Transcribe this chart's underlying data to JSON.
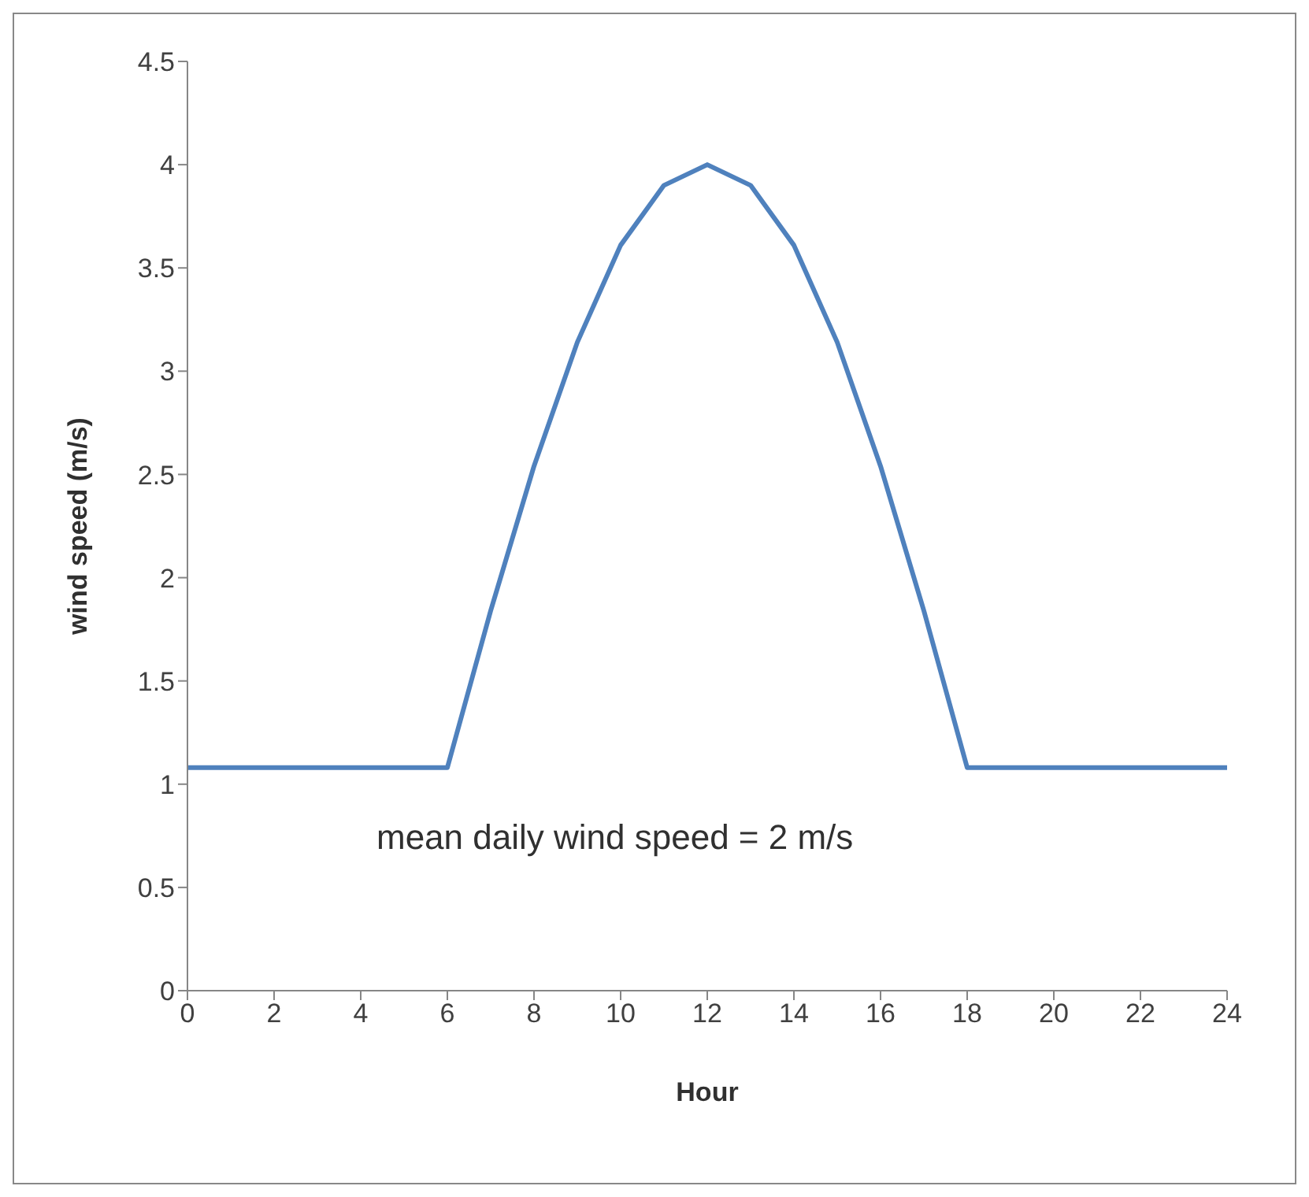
{
  "chart_data": {
    "type": "line",
    "xlabel": "Hour",
    "ylabel": "wind speed (m/s)",
    "x": [
      0,
      1,
      2,
      3,
      4,
      5,
      6,
      7,
      8,
      9,
      10,
      11,
      12,
      13,
      14,
      15,
      16,
      17,
      18,
      19,
      20,
      21,
      22,
      23,
      24
    ],
    "series": [
      {
        "color": "#4f81bd",
        "values": [
          1.08,
          1.08,
          1.08,
          1.08,
          1.08,
          1.08,
          1.08,
          1.84,
          2.54,
          3.14,
          3.61,
          3.9,
          4.0,
          3.9,
          3.61,
          3.14,
          2.54,
          1.84,
          1.08,
          1.08,
          1.08,
          1.08,
          1.08,
          1.08,
          1.08
        ]
      }
    ],
    "xlim": [
      0,
      24
    ],
    "xticks": [
      0,
      2,
      4,
      6,
      8,
      10,
      12,
      14,
      16,
      18,
      20,
      22,
      24
    ],
    "ylim": [
      0,
      4.5
    ],
    "yticks": [
      0,
      0.5,
      1,
      1.5,
      2,
      2.5,
      3,
      3.5,
      4,
      4.5
    ],
    "annotations": [
      "mean daily wind speed = 2 m/s"
    ],
    "grid": false,
    "legend": false,
    "marker": "none",
    "line_style": "solid"
  }
}
